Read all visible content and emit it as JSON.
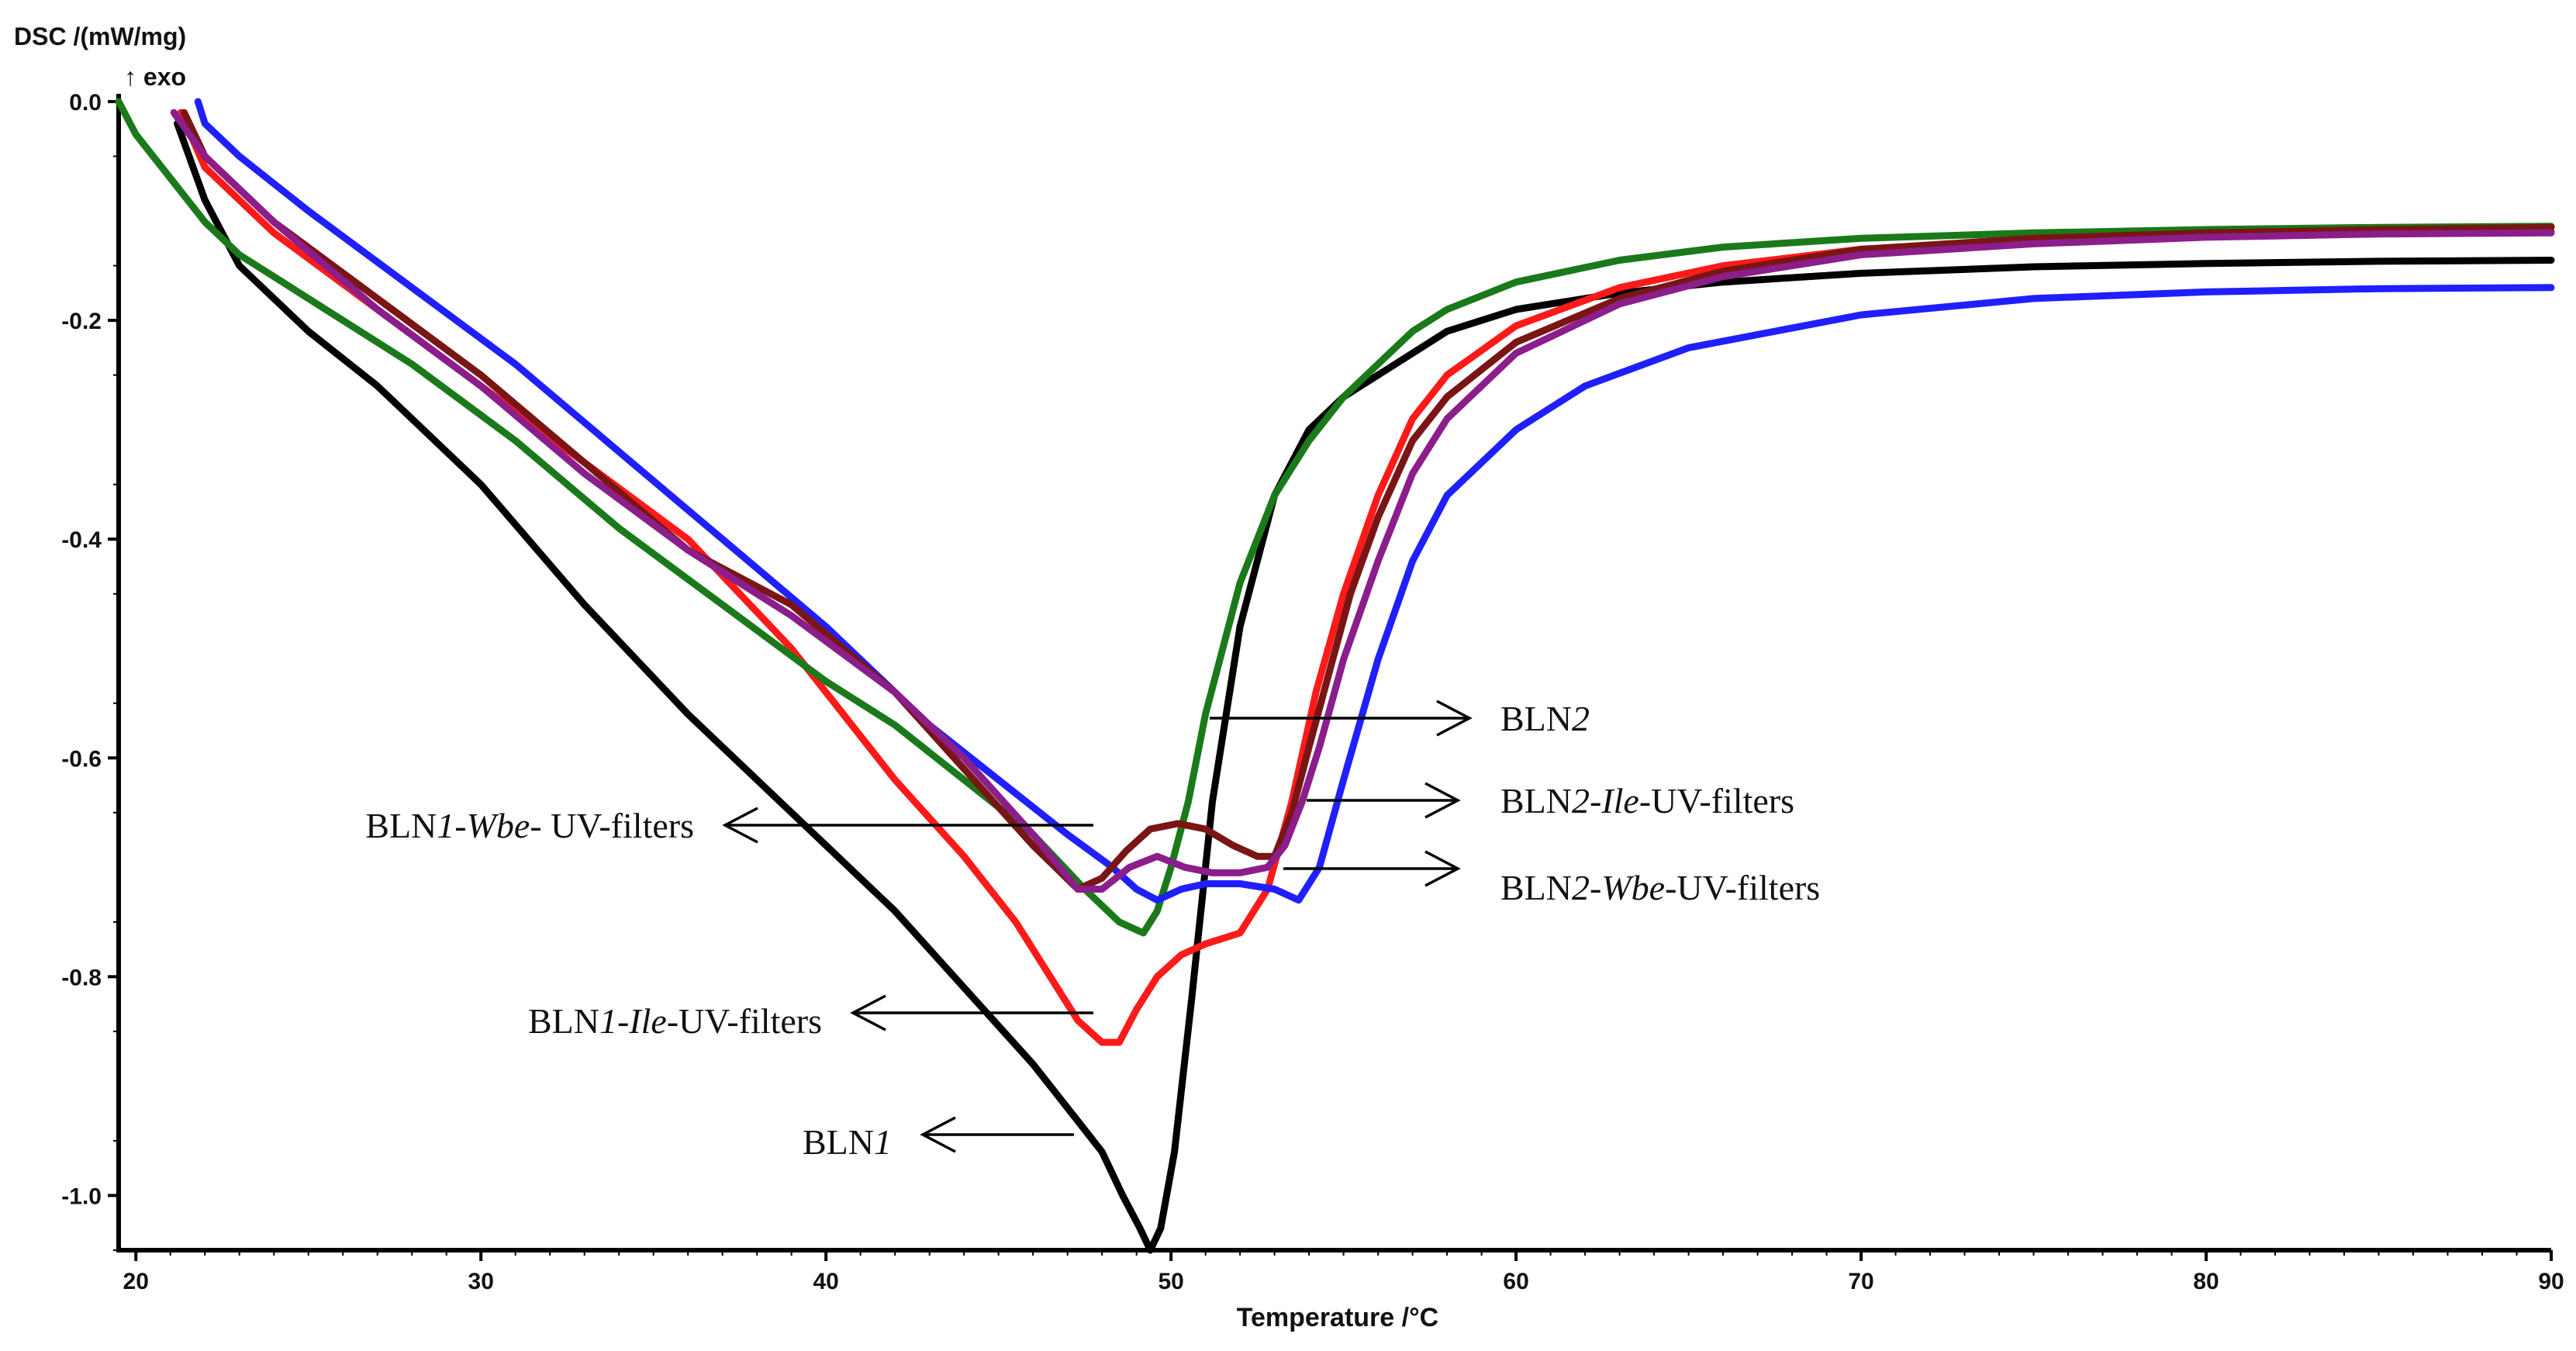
{
  "chart_data": {
    "type": "line",
    "ylabel": "DSC /(mW/mg)",
    "direction_label": "↑ exo",
    "xlabel": "Temperature /°C",
    "xlim": [
      19.5,
      90
    ],
    "ylim": [
      -1.05,
      0.0
    ],
    "x_ticks": [
      20,
      30,
      40,
      50,
      60,
      70,
      80,
      90
    ],
    "y_ticks": [
      0.0,
      -0.2,
      -0.4,
      -0.6,
      -0.8,
      -1.0
    ],
    "x_tick_labels": [
      "20",
      "30",
      "40",
      "50",
      "60",
      "70",
      "80",
      "90"
    ],
    "y_tick_labels": [
      "0.0",
      "-0.2",
      "-0.4",
      "-0.6",
      "-0.8",
      "-1.0"
    ],
    "series": [
      {
        "name": "BLN1",
        "color": "#000000",
        "x": [
          21.2,
          22,
          23,
          25,
          27,
          30,
          33,
          36,
          39,
          42,
          44,
          46,
          47,
          48,
          48.6,
          49.1,
          49.4,
          49.7,
          50.1,
          50.6,
          51.2,
          52,
          53,
          54,
          55,
          56,
          57,
          58,
          60,
          63,
          66,
          70,
          75,
          80,
          85,
          90
        ],
        "y": [
          -0.02,
          -0.09,
          -0.15,
          -0.21,
          -0.26,
          -0.35,
          -0.46,
          -0.56,
          -0.65,
          -0.74,
          -0.81,
          -0.88,
          -0.92,
          -0.96,
          -1.0,
          -1.03,
          -1.05,
          -1.03,
          -0.96,
          -0.82,
          -0.64,
          -0.48,
          -0.36,
          -0.3,
          -0.27,
          -0.25,
          -0.23,
          -0.21,
          -0.19,
          -0.175,
          -0.165,
          -0.157,
          -0.151,
          -0.148,
          -0.146,
          -0.145
        ]
      },
      {
        "name": "BLN1-Ile-UV-filters",
        "color": "#ff1a1a",
        "x": [
          21.3,
          22,
          24,
          27,
          30,
          33,
          36,
          39,
          42,
          44,
          45.5,
          46.5,
          47.3,
          48,
          48.5,
          49,
          49.6,
          50.3,
          51,
          52,
          52.8,
          53.5,
          54.2,
          55,
          56,
          57,
          58,
          60,
          63,
          66,
          70,
          75,
          80,
          85,
          90
        ],
        "y": [
          -0.01,
          -0.06,
          -0.12,
          -0.19,
          -0.26,
          -0.33,
          -0.4,
          -0.5,
          -0.62,
          -0.69,
          -0.75,
          -0.8,
          -0.84,
          -0.86,
          -0.86,
          -0.83,
          -0.8,
          -0.78,
          -0.77,
          -0.76,
          -0.72,
          -0.64,
          -0.54,
          -0.45,
          -0.36,
          -0.29,
          -0.25,
          -0.205,
          -0.17,
          -0.15,
          -0.135,
          -0.127,
          -0.122,
          -0.12,
          -0.119
        ]
      },
      {
        "name": "BLN1-Wbe-UV-filters",
        "color": "#1a7a1a",
        "x": [
          19.5,
          20,
          21,
          22,
          23,
          25,
          28,
          31,
          34,
          37,
          40,
          42,
          44,
          46,
          47.5,
          48.5,
          49.2,
          49.6,
          50,
          50.5,
          51,
          52,
          53,
          54,
          55,
          56,
          57,
          58,
          60,
          63,
          66,
          70,
          75,
          80,
          85,
          90
        ],
        "y": [
          0.0,
          -0.03,
          -0.07,
          -0.11,
          -0.14,
          -0.18,
          -0.24,
          -0.31,
          -0.39,
          -0.46,
          -0.53,
          -0.57,
          -0.62,
          -0.67,
          -0.72,
          -0.75,
          -0.76,
          -0.74,
          -0.7,
          -0.64,
          -0.56,
          -0.44,
          -0.36,
          -0.31,
          -0.27,
          -0.24,
          -0.21,
          -0.19,
          -0.165,
          -0.145,
          -0.133,
          -0.125,
          -0.12,
          -0.117,
          -0.115,
          -0.114
        ]
      },
      {
        "name": "BLN2",
        "color": "#1f1fff",
        "x": [
          21.8,
          22,
          23,
          25,
          28,
          31,
          34,
          37,
          40,
          43,
          45,
          47,
          48.3,
          49,
          49.6,
          50.3,
          51,
          52,
          53,
          53.7,
          54.3,
          55,
          56,
          57,
          58,
          60,
          62,
          65,
          70,
          75,
          80,
          85,
          90
        ],
        "y": [
          0.0,
          -0.02,
          -0.05,
          -0.1,
          -0.17,
          -0.24,
          -0.32,
          -0.4,
          -0.48,
          -0.57,
          -0.62,
          -0.67,
          -0.7,
          -0.72,
          -0.73,
          -0.72,
          -0.715,
          -0.715,
          -0.72,
          -0.73,
          -0.7,
          -0.62,
          -0.51,
          -0.42,
          -0.36,
          -0.3,
          -0.26,
          -0.225,
          -0.195,
          -0.18,
          -0.174,
          -0.171,
          -0.17
        ]
      },
      {
        "name": "BLN2-Ile-UV-filters",
        "color": "#7a1515",
        "x": [
          21.4,
          22,
          24,
          27,
          30,
          33,
          36,
          39,
          42,
          44,
          46,
          47.3,
          48,
          48.7,
          49.4,
          50.2,
          51,
          51.8,
          52.5,
          53,
          53.5,
          54,
          54.6,
          55.2,
          56,
          57,
          58,
          60,
          63,
          66,
          70,
          75,
          80,
          85,
          90
        ],
        "y": [
          -0.01,
          -0.05,
          -0.11,
          -0.18,
          -0.25,
          -0.33,
          -0.41,
          -0.46,
          -0.54,
          -0.61,
          -0.68,
          -0.72,
          -0.71,
          -0.685,
          -0.665,
          -0.66,
          -0.665,
          -0.68,
          -0.69,
          -0.69,
          -0.65,
          -0.59,
          -0.52,
          -0.45,
          -0.38,
          -0.31,
          -0.27,
          -0.22,
          -0.18,
          -0.155,
          -0.135,
          -0.125,
          -0.12,
          -0.117,
          -0.115
        ]
      },
      {
        "name": "BLN2-Wbe-UV-filters",
        "color": "#8b1e8b",
        "x": [
          21.1,
          22,
          24,
          27,
          30,
          33,
          36,
          39,
          42,
          44,
          46,
          47.3,
          48,
          48.8,
          49.6,
          50.4,
          51.2,
          52,
          52.8,
          53.3,
          53.8,
          54.3,
          55,
          56,
          57,
          58,
          60,
          63,
          66,
          70,
          75,
          80,
          85,
          90
        ],
        "y": [
          -0.01,
          -0.05,
          -0.11,
          -0.19,
          -0.26,
          -0.34,
          -0.41,
          -0.47,
          -0.54,
          -0.6,
          -0.67,
          -0.72,
          -0.72,
          -0.7,
          -0.69,
          -0.7,
          -0.705,
          -0.705,
          -0.7,
          -0.68,
          -0.64,
          -0.59,
          -0.51,
          -0.42,
          -0.34,
          -0.29,
          -0.23,
          -0.185,
          -0.16,
          -0.14,
          -0.13,
          -0.124,
          -0.121,
          -0.12
        ]
      }
    ],
    "annotations": [
      {
        "parts": [
          {
            "t": "BLN"
          },
          {
            "t": "2",
            "i": true
          }
        ],
        "arrow": "right"
      },
      {
        "parts": [
          {
            "t": "BLN"
          },
          {
            "t": "2-Ile",
            "i": true
          },
          {
            "t": "-UV-filters"
          }
        ],
        "arrow": "right"
      },
      {
        "parts": [
          {
            "t": "BLN"
          },
          {
            "t": "2-Wbe",
            "i": true
          },
          {
            "t": "-UV-filters"
          }
        ],
        "arrow": "right"
      },
      {
        "parts": [
          {
            "t": "BLN"
          },
          {
            "t": "1-Wbe",
            "i": true
          },
          {
            "t": "- UV-filters"
          }
        ],
        "arrow": "left"
      },
      {
        "parts": [
          {
            "t": "BLN"
          },
          {
            "t": "1-Ile",
            "i": true
          },
          {
            "t": "-UV-filters"
          }
        ],
        "arrow": "left"
      },
      {
        "parts": [
          {
            "t": "BLN"
          },
          {
            "t": "1",
            "i": true
          }
        ],
        "arrow": "left"
      }
    ]
  }
}
